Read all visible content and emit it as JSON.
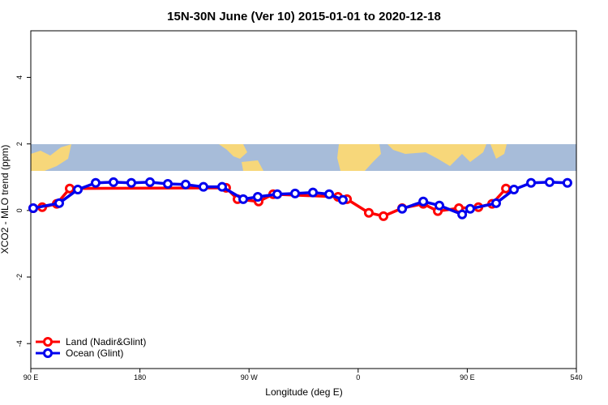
{
  "chart_data": {
    "type": "line",
    "title": "15N-30N June (Ver 10)   2015-01-01 to 2020-12-18",
    "xlabel": "Longitude (deg E)",
    "ylabel": "XCO2 - MLO trend (ppm)",
    "xlim": [
      90,
      540
    ],
    "ylim": [
      -4.75,
      5.4
    ],
    "xticks": [
      {
        "value": 90,
        "label": "90 E"
      },
      180,
      {
        "value": 270,
        "label": "90 W"
      },
      {
        "value": 360,
        "label": "0"
      },
      {
        "value": 450,
        "label": "90 E"
      },
      540
    ],
    "yticks": [
      4,
      2,
      0,
      -2,
      -4
    ],
    "legend": "bottom-left",
    "series": [
      {
        "name": "Land (Nadir&Glint)",
        "color": "#ff0000",
        "x": [
          92,
          99.4,
          111.4,
          122.1,
          251.1,
          260.5,
          277.9,
          289.9,
          343.4,
          350.8,
          368.8,
          380.9,
          396.3,
          413.7,
          425.7,
          443.1,
          459.2,
          470.5,
          481.9
        ],
        "values": [
          0.07,
          0.1,
          0.2,
          0.66,
          0.68,
          0.34,
          0.27,
          0.49,
          0.41,
          0.34,
          -0.07,
          -0.17,
          0.07,
          0.2,
          -0.02,
          0.07,
          0.1,
          0.2,
          0.66
        ]
      },
      {
        "name": "Ocean (Glint)",
        "color": "#0000ee",
        "x": [
          92,
          113.4,
          128.8,
          143.5,
          158.2,
          172.9,
          188.3,
          203,
          217.7,
          232.4,
          247.8,
          265.2,
          277.2,
          293.3,
          308,
          322.7,
          336.1,
          347.4,
          null,
          396.3,
          413.7,
          427,
          445.8,
          452.4,
          473.8,
          488.5,
          502.6,
          517.9,
          532.6
        ],
        "values": [
          0.07,
          0.22,
          0.63,
          0.83,
          0.85,
          0.83,
          0.85,
          0.8,
          0.78,
          0.71,
          0.71,
          0.34,
          0.41,
          0.49,
          0.51,
          0.54,
          0.49,
          0.32,
          null,
          0.05,
          0.27,
          0.15,
          -0.12,
          0.05,
          0.22,
          0.63,
          0.83,
          0.85,
          0.83
        ]
      }
    ]
  }
}
